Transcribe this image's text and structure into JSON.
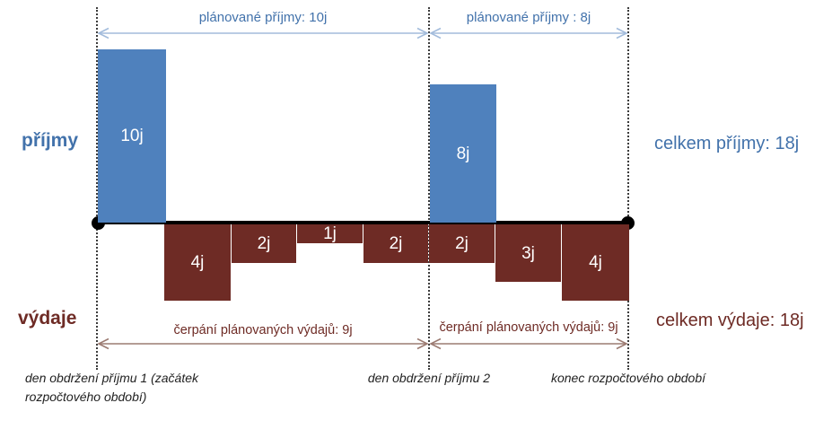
{
  "colors": {
    "income_bar": "#4f81bd",
    "expense_bar": "#6e2b25",
    "income_text": "#4272ab",
    "expense_text": "#6e2b25",
    "income_arrow": "#a3bcdc",
    "expense_arrow": "#9c7b72",
    "axis": "#000000"
  },
  "chart_data": {
    "type": "bar",
    "unit": "j",
    "layout_hint": "timeline axis with income bars above and expense bars below, two budget periods",
    "income": {
      "axis_label": "příjmy",
      "bars": [
        {
          "value": 10,
          "label": "10j",
          "period": 1
        },
        {
          "value": 8,
          "label": "8j",
          "period": 2
        }
      ],
      "planned_spans": [
        {
          "label": "plánované příjmy: 10j",
          "value": 10,
          "period": 1
        },
        {
          "label": "plánované příjmy : 8j",
          "value": 8,
          "period": 2
        }
      ],
      "total_label": "celkem příjmy: 18j",
      "total": 18
    },
    "expenses": {
      "axis_label": "výdaje",
      "bars": [
        {
          "value": 4,
          "label": "4j",
          "period": 1
        },
        {
          "value": 2,
          "label": "2j",
          "period": 1
        },
        {
          "value": 1,
          "label": "1j",
          "period": 1
        },
        {
          "value": 2,
          "label": "2j",
          "period": 1
        },
        {
          "value": 2,
          "label": "2j",
          "period": 2
        },
        {
          "value": 3,
          "label": "3j",
          "period": 2
        },
        {
          "value": 4,
          "label": "4j",
          "period": 2
        }
      ],
      "spending_spans": [
        {
          "label": "čerpání plánovaných výdajů: 9j",
          "value": 9,
          "period": 1
        },
        {
          "label": "čerpání plánovaných výdajů: 9j",
          "value": 9,
          "period": 2
        }
      ],
      "total_label": "celkem výdaje: 18j",
      "total": 18
    },
    "timeline_markers": [
      "den obdržení příjmu 1 (začátek rozpočtového období)",
      "den obdržení příjmu 2",
      "konec rozpočtového období"
    ]
  }
}
